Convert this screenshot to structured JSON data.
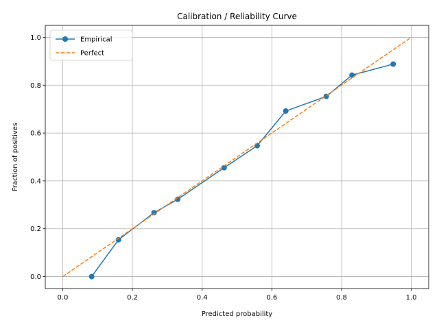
{
  "chart_data": {
    "type": "line",
    "title": "Calibration / Reliability Curve",
    "xlabel": "Predicted probability",
    "ylabel": "Fraction of positives",
    "xlim": [
      -0.05,
      1.05
    ],
    "ylim": [
      -0.05,
      1.05
    ],
    "xticks": [
      0.0,
      0.2,
      0.4,
      0.6,
      0.8,
      1.0
    ],
    "xtick_labels": [
      "0.0",
      "0.2",
      "0.4",
      "0.6",
      "0.8",
      "1.0"
    ],
    "yticks": [
      0.0,
      0.2,
      0.4,
      0.6,
      0.8,
      1.0
    ],
    "ytick_labels": [
      "0.0",
      "0.2",
      "0.4",
      "0.6",
      "0.8",
      "1.0"
    ],
    "grid": true,
    "legend_position": "top-left",
    "series": [
      {
        "name": "Empirical",
        "color": "#1f77b4",
        "style": "solid",
        "marker": "circle",
        "x": [
          0.083,
          0.16,
          0.262,
          0.33,
          0.463,
          0.558,
          0.64,
          0.756,
          0.83,
          0.948
        ],
        "y": [
          0.0,
          0.154,
          0.267,
          0.323,
          0.455,
          0.547,
          0.692,
          0.753,
          0.842,
          0.888
        ]
      },
      {
        "name": "Perfect",
        "color": "#ff7f0e",
        "style": "dashed",
        "marker": "none",
        "x": [
          0.0,
          1.0
        ],
        "y": [
          0.0,
          1.0
        ]
      }
    ]
  }
}
